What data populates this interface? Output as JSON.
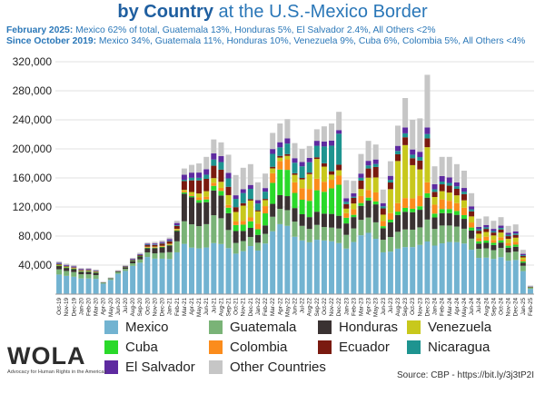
{
  "title": {
    "bold": "by Country",
    "rest": "at the U.S.-Mexico Border"
  },
  "subtitle1": {
    "label": "February 2025:",
    "text": "Mexico 62% of total, Guatemala 13%, Honduras 5%, El Salvador 2.4%, All Others <2%"
  },
  "subtitle2": {
    "label": "Since October 2019:",
    "text": "Mexico 34%, Guatemala 11%, Honduras 10%, Venezuela 9%, Cuba 6%, Colombia 5%, All Others <4%"
  },
  "logo": {
    "name": "WOLA",
    "tagline": "Advocacy for Human Rights in the Americas"
  },
  "source": "Source: CBP - https://bit.ly/3j3tP2I",
  "colors": {
    "Mexico": "#72b3d1",
    "Guatemala": "#7ab377",
    "Honduras": "#3a3232",
    "Venezuela": "#c8c81c",
    "Cuba": "#2ad92a",
    "Colombia": "#fb8c1c",
    "Ecuador": "#7a1a10",
    "Nicaragua": "#1e9490",
    "El Salvador": "#5e2aa0",
    "Other Countries": "#c6c6c6"
  },
  "chart_data": {
    "type": "bar",
    "stacked": true,
    "ylim": [
      0,
      320000
    ],
    "yticks": [
      "40,000",
      "80,000",
      "120,000",
      "160,000",
      "200,000",
      "240,000",
      "280,000",
      "320,000"
    ],
    "ytick_values": [
      40000,
      80000,
      120000,
      160000,
      200000,
      240000,
      280000,
      320000
    ],
    "categories": [
      "Oct-19",
      "Nov-19",
      "Dec-19",
      "Jan-20",
      "Feb-20",
      "Mar-20",
      "Apr-20",
      "May-20",
      "Jun-20",
      "Jul-20",
      "Aug-20",
      "Sep-20",
      "Oct-20",
      "Nov-20",
      "Dec-20",
      "Jan-21",
      "Feb-21",
      "Mar-21",
      "Apr-21",
      "May-21",
      "Jun-21",
      "Jul-21",
      "Aug-21",
      "Sep-21",
      "Oct-21",
      "Nov-21",
      "Dec-21",
      "Jan-22",
      "Feb-22",
      "Mar-22",
      "Apr-22",
      "May-22",
      "Jun-22",
      "Jul-22",
      "Aug-22",
      "Sep-22",
      "Oct-22",
      "Nov-22",
      "Dec-22",
      "Jan-23",
      "Feb-23",
      "Mar-23",
      "Apr-23",
      "May-23",
      "Jun-23",
      "Jul-23",
      "Aug-23",
      "Sep-23",
      "Oct-23",
      "Nov-23",
      "Dec-23",
      "Jan-24",
      "Feb-24",
      "Mar-24",
      "Apr-24",
      "May-24",
      "Jun-24",
      "Jul-24",
      "Aug-24",
      "Sep-24",
      "Oct-24",
      "Nov-24",
      "Dec-24",
      "Jan-25",
      "Feb-25"
    ],
    "xtick_labels": [
      "Oct-19",
      "Nov-19",
      "Dec-19",
      "Jan-20",
      "Feb-20",
      "Mar-20",
      "Apr-20",
      "May-20",
      "Jun-20",
      "Jul-20",
      "Aug-20",
      "Sep-20",
      "Oct-20",
      "Nov-20",
      "Dec-20",
      "Jan-21",
      "Feb-21",
      "Mar-21",
      "Apr-21",
      "May-21",
      "Jun-21",
      "Jul-21",
      "Aug-21",
      "Sep-21",
      "Oct-21",
      "Nov-21",
      "Dec-21",
      "Jan-22",
      "Feb-22",
      "Mar-22",
      "Apr-22",
      "May-22",
      "Jun-22",
      "Jul-22",
      "Aug-22",
      "Sep-22",
      "Oct-22",
      "Nov-22",
      "Dec-22",
      "Jan-23",
      "Feb-23",
      "Mar-23",
      "Apr-23",
      "May-23",
      "Jun-23",
      "Jul-23",
      "Aug-23",
      "Sep-23",
      "Oct-23",
      "Nov-23",
      "Dec-23",
      "Jan-24",
      "Feb-24",
      "Mar-24",
      "Apr-24",
      "May-24",
      "Jun-24",
      "Jul-24",
      "Aug-24",
      "Sep-24",
      "Oct-24",
      "Nov-24",
      "Dec-24",
      "Jan-25",
      "Feb-25"
    ],
    "totals": [
      45000,
      42000,
      40000,
      36000,
      36000,
      34000,
      17000,
      23000,
      33000,
      40000,
      50000,
      57000,
      71000,
      72000,
      74000,
      78000,
      101000,
      173000,
      178000,
      180000,
      189000,
      213000,
      209000,
      192000,
      164000,
      174000,
      179000,
      154000,
      166000,
      222000,
      235000,
      241000,
      208000,
      200000,
      204000,
      227000,
      231000,
      235000,
      251000,
      157000,
      156000,
      193000,
      211000,
      206000,
      144000,
      183000,
      232000,
      270000,
      240000,
      242000,
      302000,
      176000,
      189000,
      189000,
      179000,
      170000,
      139000,
      104000,
      107000,
      101000,
      106000,
      94000,
      96000,
      61000,
      11700
    ],
    "series_order": [
      "Mexico",
      "Guatemala",
      "Honduras",
      "Cuba",
      "Colombia",
      "Venezuela",
      "Ecuador",
      "Nicaragua",
      "El Salvador",
      "Other Countries"
    ],
    "shares": [
      [
        0.6,
        0.16,
        0.1,
        0.02,
        0.01,
        0.01,
        0.02,
        0.01,
        0.03,
        0.04
      ],
      [
        0.6,
        0.16,
        0.1,
        0.02,
        0.01,
        0.01,
        0.02,
        0.01,
        0.03,
        0.04
      ],
      [
        0.6,
        0.16,
        0.1,
        0.02,
        0.01,
        0.01,
        0.02,
        0.01,
        0.03,
        0.04
      ],
      [
        0.6,
        0.16,
        0.1,
        0.02,
        0.01,
        0.01,
        0.02,
        0.01,
        0.03,
        0.04
      ],
      [
        0.6,
        0.16,
        0.1,
        0.02,
        0.01,
        0.01,
        0.02,
        0.01,
        0.03,
        0.04
      ],
      [
        0.62,
        0.15,
        0.1,
        0.02,
        0.01,
        0.01,
        0.02,
        0.01,
        0.02,
        0.04
      ],
      [
        0.85,
        0.06,
        0.03,
        0.01,
        0.0,
        0.0,
        0.01,
        0.0,
        0.01,
        0.03
      ],
      [
        0.85,
        0.06,
        0.03,
        0.01,
        0.0,
        0.0,
        0.01,
        0.0,
        0.01,
        0.03
      ],
      [
        0.85,
        0.06,
        0.03,
        0.01,
        0.0,
        0.0,
        0.01,
        0.0,
        0.01,
        0.03
      ],
      [
        0.8,
        0.07,
        0.05,
        0.01,
        0.0,
        0.0,
        0.02,
        0.01,
        0.01,
        0.03
      ],
      [
        0.78,
        0.07,
        0.06,
        0.01,
        0.0,
        0.0,
        0.02,
        0.01,
        0.02,
        0.03
      ],
      [
        0.76,
        0.08,
        0.07,
        0.01,
        0.0,
        0.0,
        0.02,
        0.01,
        0.02,
        0.03
      ],
      [
        0.72,
        0.09,
        0.08,
        0.01,
        0.01,
        0.01,
        0.03,
        0.01,
        0.02,
        0.02
      ],
      [
        0.68,
        0.1,
        0.1,
        0.01,
        0.01,
        0.01,
        0.03,
        0.01,
        0.02,
        0.03
      ],
      [
        0.66,
        0.11,
        0.1,
        0.01,
        0.01,
        0.01,
        0.04,
        0.01,
        0.02,
        0.03
      ],
      [
        0.62,
        0.12,
        0.12,
        0.01,
        0.01,
        0.01,
        0.04,
        0.01,
        0.03,
        0.03
      ],
      [
        0.57,
        0.15,
        0.14,
        0.01,
        0.01,
        0.01,
        0.04,
        0.01,
        0.03,
        0.03
      ],
      [
        0.4,
        0.18,
        0.22,
        0.01,
        0.01,
        0.01,
        0.07,
        0.01,
        0.04,
        0.05
      ],
      [
        0.36,
        0.18,
        0.21,
        0.01,
        0.01,
        0.02,
        0.09,
        0.02,
        0.04,
        0.06
      ],
      [
        0.35,
        0.17,
        0.18,
        0.02,
        0.02,
        0.03,
        0.1,
        0.02,
        0.04,
        0.07
      ],
      [
        0.34,
        0.17,
        0.16,
        0.02,
        0.02,
        0.04,
        0.09,
        0.03,
        0.04,
        0.09
      ],
      [
        0.33,
        0.18,
        0.16,
        0.03,
        0.02,
        0.03,
        0.08,
        0.04,
        0.04,
        0.09
      ],
      [
        0.33,
        0.17,
        0.15,
        0.03,
        0.02,
        0.04,
        0.08,
        0.05,
        0.04,
        0.09
      ],
      [
        0.33,
        0.13,
        0.12,
        0.04,
        0.02,
        0.07,
        0.06,
        0.06,
        0.04,
        0.13
      ],
      [
        0.34,
        0.09,
        0.1,
        0.05,
        0.03,
        0.08,
        0.04,
        0.07,
        0.03,
        0.17
      ],
      [
        0.34,
        0.08,
        0.08,
        0.05,
        0.03,
        0.12,
        0.02,
        0.08,
        0.03,
        0.17
      ],
      [
        0.37,
        0.07,
        0.07,
        0.05,
        0.03,
        0.13,
        0.01,
        0.08,
        0.03,
        0.16
      ],
      [
        0.39,
        0.07,
        0.07,
        0.05,
        0.05,
        0.11,
        0.01,
        0.06,
        0.03,
        0.16
      ],
      [
        0.42,
        0.08,
        0.07,
        0.1,
        0.06,
        0.05,
        0.01,
        0.06,
        0.03,
        0.12
      ],
      [
        0.39,
        0.09,
        0.08,
        0.13,
        0.06,
        0.03,
        0.01,
        0.08,
        0.03,
        0.1
      ],
      [
        0.41,
        0.09,
        0.08,
        0.15,
        0.05,
        0.02,
        0.01,
        0.05,
        0.03,
        0.11
      ],
      [
        0.39,
        0.09,
        0.08,
        0.15,
        0.06,
        0.02,
        0.01,
        0.06,
        0.03,
        0.11
      ],
      [
        0.38,
        0.1,
        0.09,
        0.1,
        0.07,
        0.05,
        0.01,
        0.07,
        0.03,
        0.1
      ],
      [
        0.37,
        0.1,
        0.08,
        0.1,
        0.08,
        0.06,
        0.01,
        0.08,
        0.03,
        0.09
      ],
      [
        0.35,
        0.09,
        0.08,
        0.11,
        0.08,
        0.1,
        0.01,
        0.07,
        0.03,
        0.08
      ],
      [
        0.33,
        0.09,
        0.08,
        0.13,
        0.07,
        0.12,
        0.01,
        0.07,
        0.03,
        0.07
      ],
      [
        0.32,
        0.08,
        0.08,
        0.13,
        0.06,
        0.09,
        0.02,
        0.1,
        0.03,
        0.09
      ],
      [
        0.31,
        0.08,
        0.08,
        0.15,
        0.05,
        0.03,
        0.02,
        0.15,
        0.03,
        0.1
      ],
      [
        0.28,
        0.08,
        0.07,
        0.17,
        0.05,
        0.03,
        0.03,
        0.17,
        0.02,
        0.1
      ],
      [
        0.4,
        0.12,
        0.1,
        0.05,
        0.04,
        0.04,
        0.04,
        0.02,
        0.03,
        0.16
      ],
      [
        0.46,
        0.12,
        0.1,
        0.02,
        0.05,
        0.05,
        0.05,
        0.01,
        0.03,
        0.11
      ],
      [
        0.42,
        0.11,
        0.1,
        0.02,
        0.05,
        0.05,
        0.06,
        0.02,
        0.03,
        0.14
      ],
      [
        0.4,
        0.1,
        0.11,
        0.02,
        0.05,
        0.08,
        0.06,
        0.02,
        0.03,
        0.13
      ],
      [
        0.37,
        0.11,
        0.12,
        0.02,
        0.06,
        0.1,
        0.07,
        0.02,
        0.03,
        0.1
      ],
      [
        0.4,
        0.12,
        0.11,
        0.02,
        0.05,
        0.06,
        0.06,
        0.02,
        0.03,
        0.13
      ],
      [
        0.32,
        0.11,
        0.11,
        0.02,
        0.05,
        0.18,
        0.05,
        0.02,
        0.03,
        0.11
      ],
      [
        0.27,
        0.1,
        0.1,
        0.02,
        0.05,
        0.25,
        0.04,
        0.02,
        0.03,
        0.12
      ],
      [
        0.24,
        0.09,
        0.09,
        0.02,
        0.05,
        0.27,
        0.04,
        0.02,
        0.03,
        0.15
      ],
      [
        0.27,
        0.1,
        0.1,
        0.02,
        0.06,
        0.19,
        0.04,
        0.02,
        0.03,
        0.17
      ],
      [
        0.28,
        0.1,
        0.1,
        0.02,
        0.06,
        0.15,
        0.05,
        0.02,
        0.03,
        0.19
      ],
      [
        0.24,
        0.1,
        0.1,
        0.02,
        0.05,
        0.16,
        0.04,
        0.02,
        0.03,
        0.24
      ],
      [
        0.38,
        0.13,
        0.09,
        0.03,
        0.07,
        0.06,
        0.04,
        0.02,
        0.04,
        0.14
      ],
      [
        0.37,
        0.13,
        0.09,
        0.03,
        0.07,
        0.06,
        0.05,
        0.02,
        0.04,
        0.14
      ],
      [
        0.38,
        0.12,
        0.09,
        0.03,
        0.06,
        0.06,
        0.05,
        0.02,
        0.04,
        0.15
      ],
      [
        0.4,
        0.12,
        0.09,
        0.03,
        0.06,
        0.06,
        0.05,
        0.02,
        0.03,
        0.14
      ],
      [
        0.41,
        0.12,
        0.08,
        0.03,
        0.06,
        0.06,
        0.05,
        0.02,
        0.03,
        0.14
      ],
      [
        0.44,
        0.11,
        0.08,
        0.03,
        0.05,
        0.06,
        0.05,
        0.02,
        0.03,
        0.13
      ],
      [
        0.48,
        0.12,
        0.07,
        0.03,
        0.04,
        0.06,
        0.04,
        0.02,
        0.03,
        0.11
      ],
      [
        0.47,
        0.12,
        0.07,
        0.03,
        0.05,
        0.06,
        0.04,
        0.02,
        0.03,
        0.11
      ],
      [
        0.48,
        0.12,
        0.07,
        0.03,
        0.04,
        0.06,
        0.04,
        0.02,
        0.03,
        0.11
      ],
      [
        0.48,
        0.12,
        0.07,
        0.03,
        0.04,
        0.06,
        0.04,
        0.02,
        0.03,
        0.11
      ],
      [
        0.49,
        0.12,
        0.07,
        0.03,
        0.04,
        0.06,
        0.04,
        0.02,
        0.03,
        0.1
      ],
      [
        0.49,
        0.12,
        0.07,
        0.03,
        0.04,
        0.06,
        0.04,
        0.02,
        0.03,
        0.1
      ],
      [
        0.52,
        0.12,
        0.07,
        0.03,
        0.04,
        0.05,
        0.03,
        0.02,
        0.03,
        0.09
      ],
      [
        0.62,
        0.13,
        0.05,
        0.015,
        0.015,
        0.015,
        0.015,
        0.015,
        0.024,
        0.111
      ]
    ]
  },
  "legend": [
    {
      "label": "Mexico",
      "color": "#72b3d1"
    },
    {
      "label": "Guatemala",
      "color": "#7ab377"
    },
    {
      "label": "Honduras",
      "color": "#3a3232"
    },
    {
      "label": "Venezuela",
      "color": "#c8c81c"
    },
    {
      "label": "Cuba",
      "color": "#2ad92a"
    },
    {
      "label": "Colombia",
      "color": "#fb8c1c"
    },
    {
      "label": "Ecuador",
      "color": "#7a1a10"
    },
    {
      "label": "Nicaragua",
      "color": "#1e9490"
    },
    {
      "label": "El Salvador",
      "color": "#5e2aa0"
    },
    {
      "label": "Other Countries",
      "color": "#c6c6c6"
    }
  ]
}
